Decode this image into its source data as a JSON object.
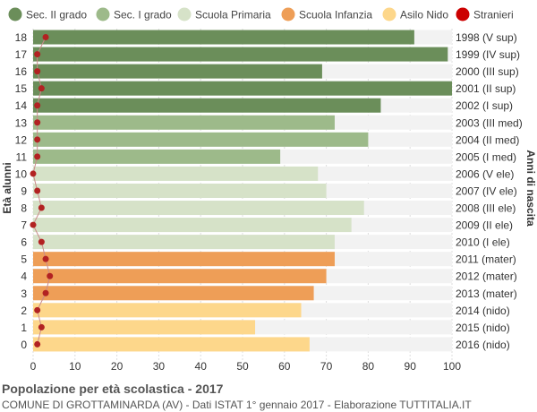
{
  "chart_data": {
    "type": "bar",
    "orientation": "horizontal",
    "ylabel_left": "Età alunni",
    "ylabel_right": "Anni di nascita",
    "xlim": [
      0,
      100
    ],
    "x_ticks": [
      0,
      10,
      20,
      30,
      40,
      50,
      60,
      70,
      80,
      90,
      100
    ],
    "grid": true,
    "legend_position": "top",
    "legend": [
      {
        "name": "Sec. II grado",
        "color": "#6b8e5a"
      },
      {
        "name": "Sec. I grado",
        "color": "#9dba8a"
      },
      {
        "name": "Scuola Primaria",
        "color": "#d6e2c8"
      },
      {
        "name": "Scuola Infanzia",
        "color": "#ee9e57"
      },
      {
        "name": "Asilo Nido",
        "color": "#fdd78b"
      },
      {
        "name": "Stranieri",
        "color": "#cc0000"
      }
    ],
    "rows": [
      {
        "age": "18",
        "birth": "1998 (V sup)",
        "value": 91,
        "stranieri": 3,
        "level": 0
      },
      {
        "age": "17",
        "birth": "1999 (IV sup)",
        "value": 99,
        "stranieri": 1,
        "level": 0
      },
      {
        "age": "16",
        "birth": "2000 (III sup)",
        "value": 69,
        "stranieri": 1,
        "level": 0
      },
      {
        "age": "15",
        "birth": "2001 (II sup)",
        "value": 100,
        "stranieri": 2,
        "level": 0
      },
      {
        "age": "14",
        "birth": "2002 (I sup)",
        "value": 83,
        "stranieri": 1,
        "level": 0
      },
      {
        "age": "13",
        "birth": "2003 (III med)",
        "value": 72,
        "stranieri": 1,
        "level": 1
      },
      {
        "age": "12",
        "birth": "2004 (II med)",
        "value": 80,
        "stranieri": 1,
        "level": 1
      },
      {
        "age": "11",
        "birth": "2005 (I med)",
        "value": 59,
        "stranieri": 1,
        "level": 1
      },
      {
        "age": "10",
        "birth": "2006 (V ele)",
        "value": 68,
        "stranieri": 0,
        "level": 2
      },
      {
        "age": "9",
        "birth": "2007 (IV ele)",
        "value": 70,
        "stranieri": 1,
        "level": 2
      },
      {
        "age": "8",
        "birth": "2008 (III ele)",
        "value": 79,
        "stranieri": 2,
        "level": 2
      },
      {
        "age": "7",
        "birth": "2009 (II ele)",
        "value": 76,
        "stranieri": 0,
        "level": 2
      },
      {
        "age": "6",
        "birth": "2010 (I ele)",
        "value": 72,
        "stranieri": 2,
        "level": 2
      },
      {
        "age": "5",
        "birth": "2011 (mater)",
        "value": 72,
        "stranieri": 3,
        "level": 3
      },
      {
        "age": "4",
        "birth": "2012 (mater)",
        "value": 70,
        "stranieri": 4,
        "level": 3
      },
      {
        "age": "3",
        "birth": "2013 (mater)",
        "value": 67,
        "stranieri": 3,
        "level": 3
      },
      {
        "age": "2",
        "birth": "2014 (nido)",
        "value": 64,
        "stranieri": 1,
        "level": 4
      },
      {
        "age": "1",
        "birth": "2015 (nido)",
        "value": 53,
        "stranieri": 2,
        "level": 4
      },
      {
        "age": "0",
        "birth": "2016 (nido)",
        "value": 66,
        "stranieri": 1,
        "level": 4
      }
    ]
  },
  "footer": {
    "title": "Popolazione per età scolastica - 2017",
    "subtitle": "COMUNE DI GROTTAMINARDA (AV) - Dati ISTAT 1° gennaio 2017 - Elaborazione TUTTITALIA.IT"
  }
}
